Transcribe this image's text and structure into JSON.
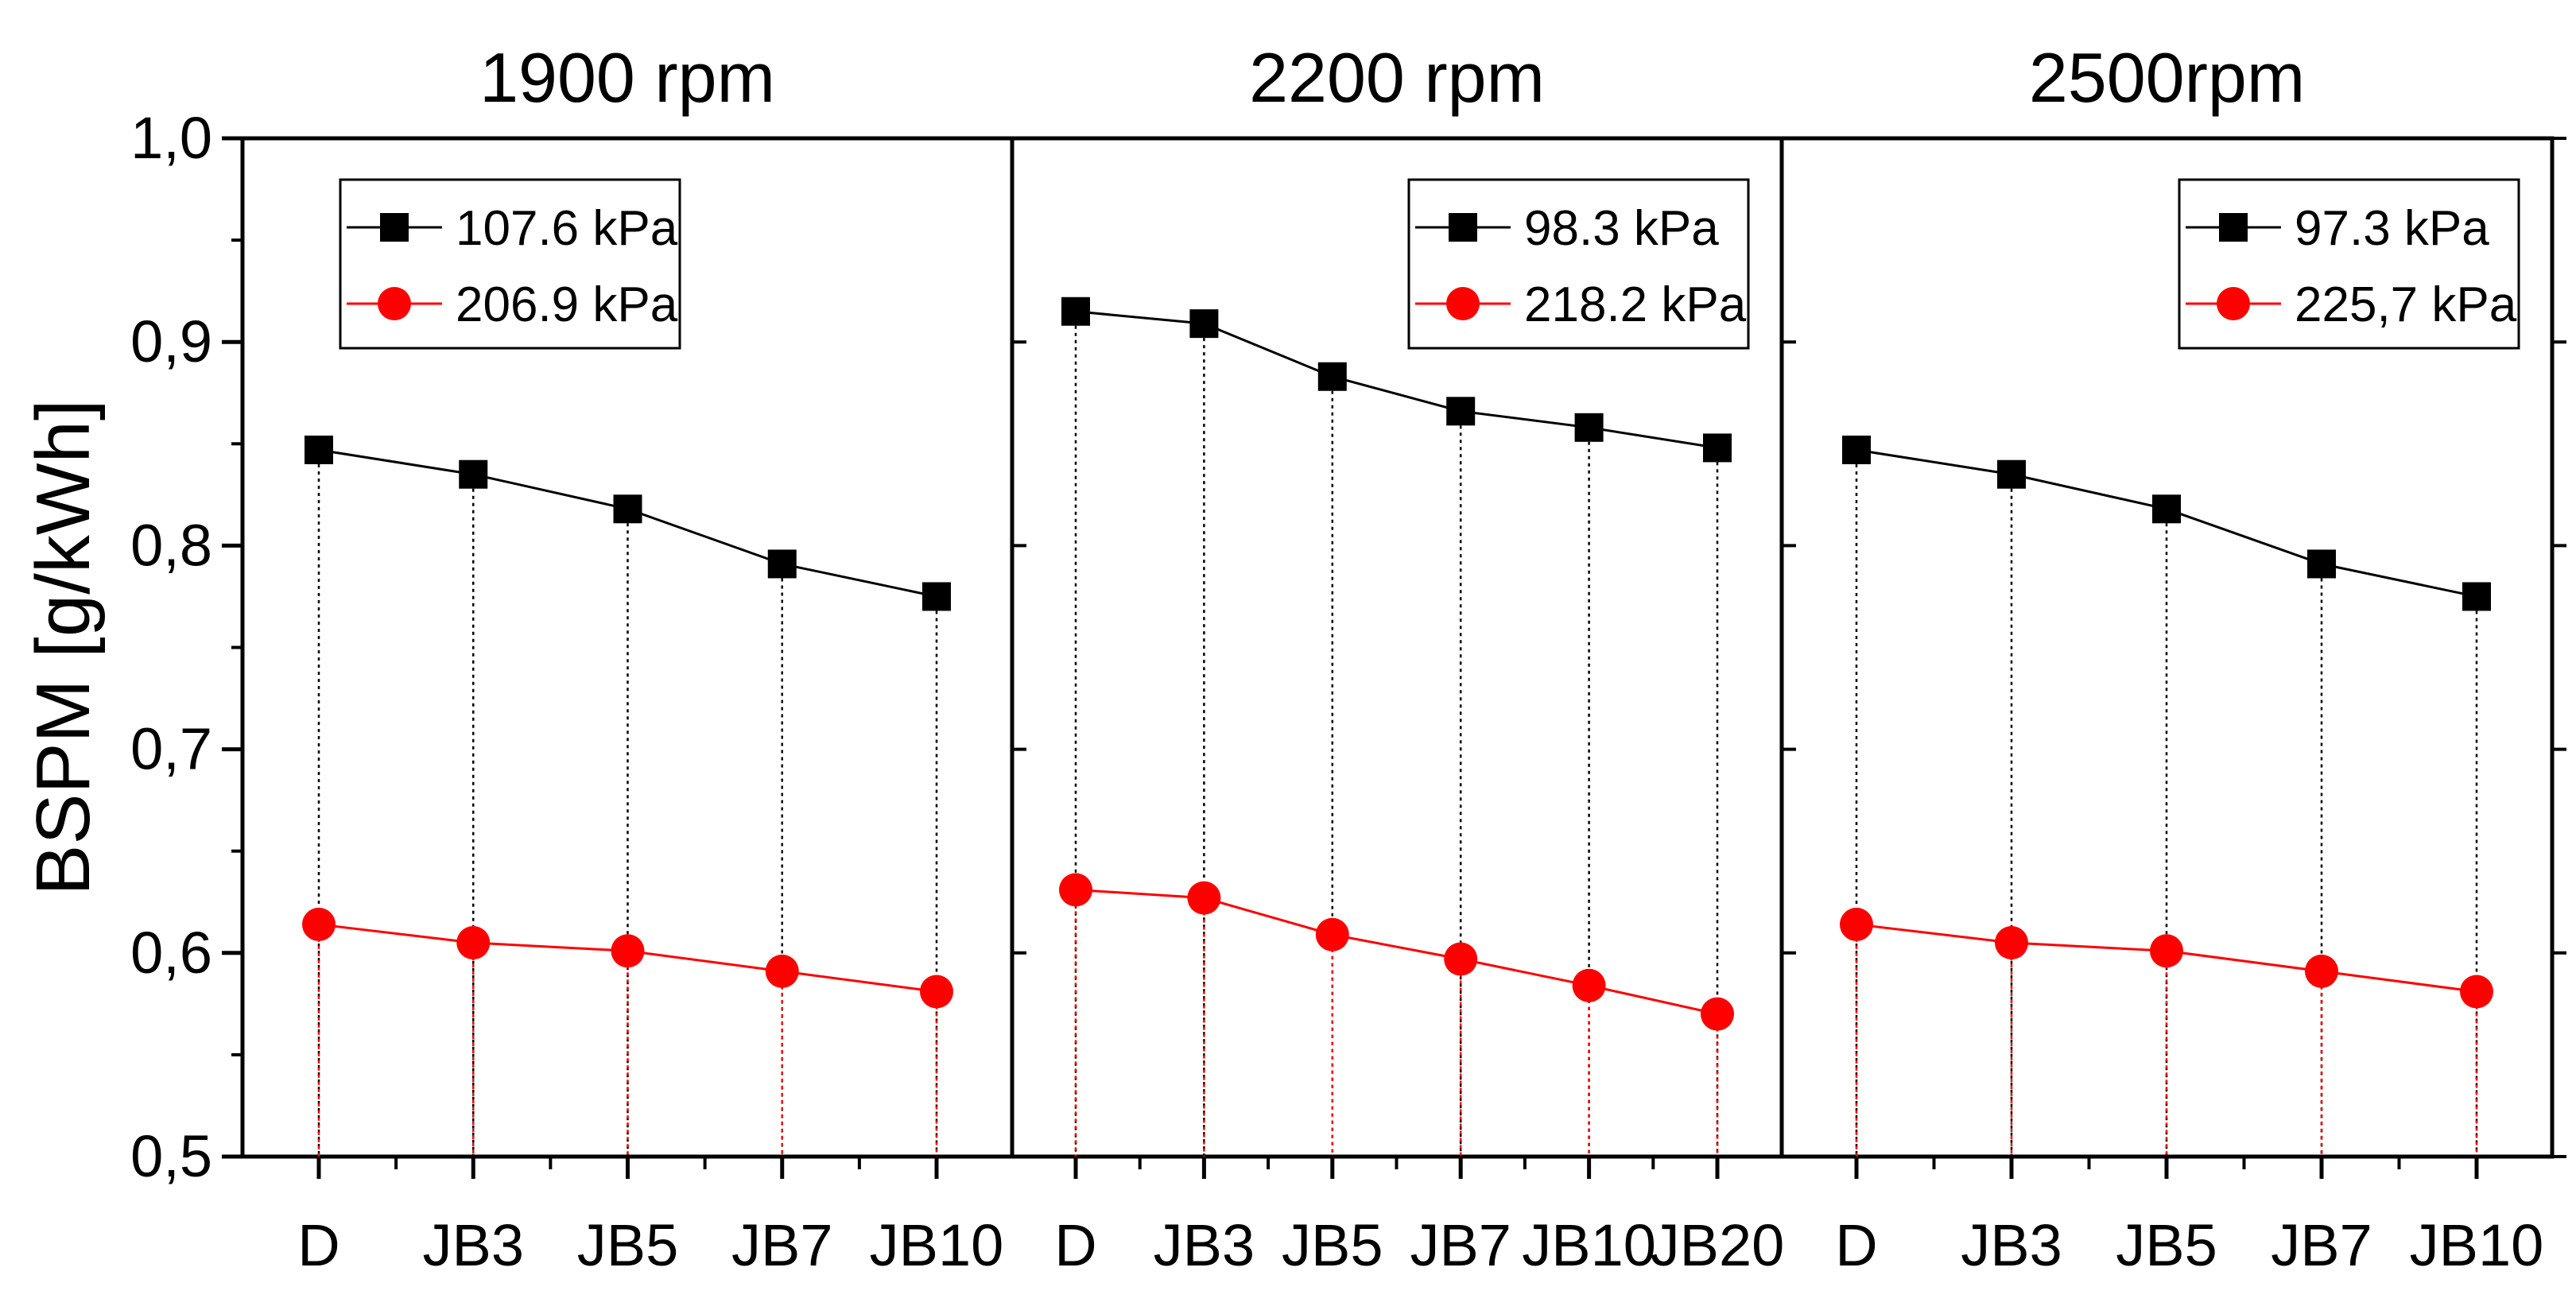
{
  "chart_data": {
    "type": "line",
    "ylabel": "BSPM [g/kWh]",
    "ylim": [
      0.5,
      1.0
    ],
    "yticks": [
      0.5,
      0.6,
      0.7,
      0.8,
      0.9,
      1.0
    ],
    "ytick_labels": [
      "0,5",
      "0,6",
      "0,7",
      "0,8",
      "0,9",
      "1,0"
    ],
    "colors": {
      "black_series": "#000000",
      "red_series": "#ff0000",
      "axis": "#000000"
    },
    "grid": false,
    "legend_placement": "top-right",
    "panels": [
      {
        "title": "1900 rpm",
        "categories": [
          "D",
          "JB3",
          "JB5",
          "JB7",
          "JB10"
        ],
        "series": [
          {
            "name": "107.6 kPa",
            "color": "black",
            "marker": "square",
            "values": [
              0.847,
              0.835,
              0.818,
              0.791,
              0.775
            ]
          },
          {
            "name": "206.9 kPa",
            "color": "red",
            "marker": "circle",
            "values": [
              0.614,
              0.605,
              0.601,
              0.591,
              0.581
            ]
          }
        ]
      },
      {
        "title": "2200 rpm",
        "categories": [
          "D",
          "JB3",
          "JB5",
          "JB7",
          "JB10",
          "JB20"
        ],
        "series": [
          {
            "name": "98.3 kPa",
            "color": "black",
            "marker": "square",
            "values": [
              0.915,
              0.909,
              0.883,
              0.866,
              0.858,
              0.848
            ]
          },
          {
            "name": "218.2 kPa",
            "color": "red",
            "marker": "circle",
            "values": [
              0.631,
              0.627,
              0.609,
              0.597,
              0.584,
              0.57
            ]
          }
        ]
      },
      {
        "title": "2500rpm",
        "categories": [
          "D",
          "JB3",
          "JB5",
          "JB7",
          "JB10"
        ],
        "series": [
          {
            "name": "97.3 kPa",
            "color": "black",
            "marker": "square",
            "values": [
              0.847,
              0.835,
              0.818,
              0.791,
              0.775
            ]
          },
          {
            "name": "225,7 kPa",
            "color": "red",
            "marker": "circle",
            "values": [
              0.614,
              0.605,
              0.601,
              0.591,
              0.581
            ]
          }
        ]
      }
    ]
  }
}
